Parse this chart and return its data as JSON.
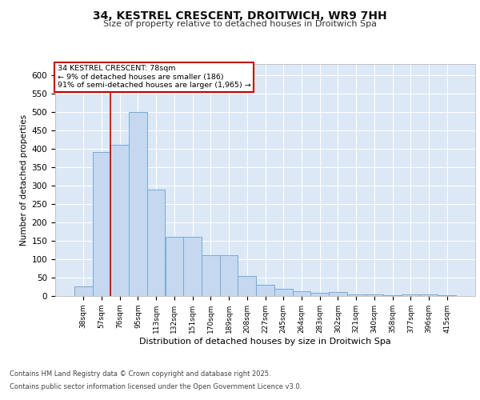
{
  "title1": "34, KESTREL CRESCENT, DROITWICH, WR9 7HH",
  "title2": "Size of property relative to detached houses in Droitwich Spa",
  "xlabel": "Distribution of detached houses by size in Droitwich Spa",
  "ylabel": "Number of detached properties",
  "bar_color": "#c5d8f0",
  "bar_edge_color": "#7aaad4",
  "background_color": "#dce8f5",
  "grid_color": "#ffffff",
  "categories": [
    "38sqm",
    "57sqm",
    "76sqm",
    "95sqm",
    "113sqm",
    "132sqm",
    "151sqm",
    "170sqm",
    "189sqm",
    "208sqm",
    "227sqm",
    "245sqm",
    "264sqm",
    "283sqm",
    "302sqm",
    "321sqm",
    "340sqm",
    "358sqm",
    "377sqm",
    "396sqm",
    "415sqm"
  ],
  "values": [
    25,
    390,
    410,
    500,
    290,
    160,
    160,
    110,
    110,
    55,
    30,
    20,
    12,
    8,
    10,
    5,
    5,
    2,
    5,
    5,
    2
  ],
  "vline_x_index": 2,
  "annotation_lines": [
    "34 KESTREL CRESCENT: 78sqm",
    "← 9% of detached houses are smaller (186)",
    "91% of semi-detached houses are larger (1,965) →"
  ],
  "annotation_box_color": "#ffffff",
  "annotation_box_edge": "#cc0000",
  "annotation_text_color": "#000000",
  "vline_color": "#cc0000",
  "footer_line1": "Contains HM Land Registry data © Crown copyright and database right 2025.",
  "footer_line2": "Contains public sector information licensed under the Open Government Licence v3.0.",
  "ylim": [
    0,
    630
  ],
  "yticks": [
    0,
    50,
    100,
    150,
    200,
    250,
    300,
    350,
    400,
    450,
    500,
    550,
    600
  ]
}
